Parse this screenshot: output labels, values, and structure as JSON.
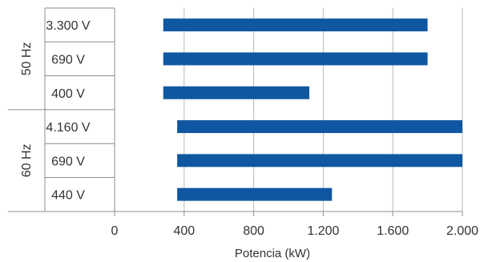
{
  "chart_data": {
    "type": "bar",
    "orientation": "horizontal",
    "title": "",
    "xlabel": "Potencia (kW)",
    "ylabel": "",
    "xlim": [
      0,
      2000
    ],
    "x_ticks": [
      0,
      400,
      800,
      1200,
      1600,
      2000
    ],
    "x_tick_labels": [
      "0",
      "400",
      "800",
      "1.200",
      "1.600",
      "2.000"
    ],
    "grid": "vertical",
    "bar_color": "#0f57a0",
    "groups": [
      {
        "label": "50 Hz",
        "categories": [
          "3.300 V",
          "690 V",
          "400 V"
        ]
      },
      {
        "label": "60 Hz",
        "categories": [
          "4.160 V",
          "690 V",
          "440 V"
        ]
      }
    ],
    "bars": [
      {
        "group": "50 Hz",
        "category": "3.300 V",
        "start": 280,
        "end": 1800
      },
      {
        "group": "50 Hz",
        "category": "690 V",
        "start": 280,
        "end": 1800
      },
      {
        "group": "50 Hz",
        "category": "400 V",
        "start": 280,
        "end": 1120
      },
      {
        "group": "60 Hz",
        "category": "4.160 V",
        "start": 360,
        "end": 2000
      },
      {
        "group": "60 Hz",
        "category": "690 V",
        "start": 360,
        "end": 2000
      },
      {
        "group": "60 Hz",
        "category": "440 V",
        "start": 360,
        "end": 1250
      }
    ]
  }
}
